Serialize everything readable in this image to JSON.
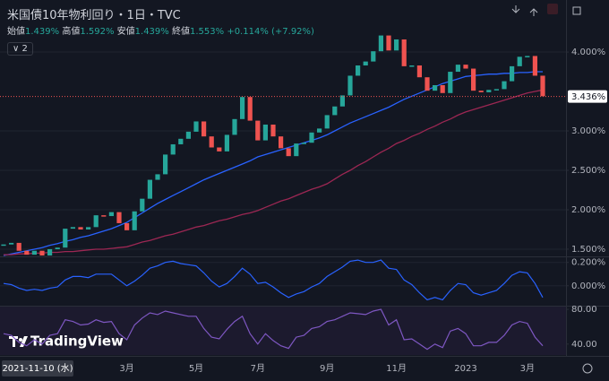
{
  "header": {
    "title": "米国債10年物利回り・1日・TVC",
    "ohlc": [
      {
        "label": "始値",
        "value": "1.439%"
      },
      {
        "label": "高値",
        "value": "1.592%"
      },
      {
        "label": "安値",
        "value": "1.439%"
      },
      {
        "label": "終値",
        "value": "1.553%"
      }
    ],
    "change": "+0.114% (+7.92%)",
    "indicator_count": "2"
  },
  "logo": "TradingView",
  "cursor_date": "2021-11-10 (水)",
  "chart_data": [
    {
      "type": "candle",
      "categories": [
        null,
        null,
        null,
        null,
        null,
        null,
        null,
        null,
        null,
        null,
        null,
        null,
        null,
        null,
        null,
        null,
        "3月",
        null,
        null,
        null,
        null,
        null,
        null,
        null,
        null,
        "5月",
        null,
        null,
        null,
        null,
        null,
        null,
        null,
        "7月",
        null,
        null,
        null,
        null,
        null,
        null,
        null,
        null,
        "9月",
        null,
        null,
        null,
        null,
        null,
        null,
        null,
        null,
        "11月",
        null,
        null,
        null,
        null,
        null,
        null,
        null,
        null,
        "2023",
        null,
        null,
        null,
        null,
        null,
        null,
        null,
        "3月",
        null,
        null
      ],
      "values": [
        1.56,
        1.58,
        1.48,
        1.43,
        1.48,
        1.42,
        1.5,
        1.52,
        1.76,
        1.78,
        1.75,
        1.78,
        1.93,
        1.92,
        1.97,
        1.83,
        1.74,
        1.98,
        2.14,
        2.38,
        2.45,
        2.7,
        2.83,
        2.9,
        2.99,
        3.12,
        2.93,
        2.79,
        2.74,
        2.95,
        3.15,
        3.43,
        3.13,
        2.88,
        3.08,
        2.93,
        2.78,
        2.68,
        2.84,
        2.85,
        2.98,
        3.03,
        3.2,
        3.31,
        3.45,
        3.7,
        3.83,
        3.88,
        4.01,
        4.21,
        4.02,
        4.16,
        3.82,
        3.83,
        3.68,
        3.51,
        3.58,
        3.48,
        3.75,
        3.84,
        3.79,
        3.51,
        3.49,
        3.52,
        3.53,
        3.63,
        3.82,
        3.94,
        3.95,
        3.7,
        3.44
      ],
      "up_color": "#26a69a",
      "down_color": "#ef5350",
      "overlays": [
        {
          "color": "#2962ff",
          "values": [
            1.42,
            1.44,
            1.46,
            1.48,
            1.5,
            1.52,
            1.55,
            1.57,
            1.6,
            1.62,
            1.65,
            1.67,
            1.7,
            1.73,
            1.76,
            1.8,
            1.84,
            1.9,
            1.96,
            2.02,
            2.08,
            2.13,
            2.18,
            2.23,
            2.28,
            2.33,
            2.38,
            2.42,
            2.46,
            2.5,
            2.54,
            2.58,
            2.62,
            2.67,
            2.7,
            2.73,
            2.76,
            2.79,
            2.82,
            2.85,
            2.88,
            2.91,
            2.95,
            3.0,
            3.05,
            3.1,
            3.14,
            3.18,
            3.22,
            3.26,
            3.3,
            3.35,
            3.4,
            3.44,
            3.48,
            3.52,
            3.56,
            3.6,
            3.63,
            3.66,
            3.69,
            3.7,
            3.71,
            3.72,
            3.72,
            3.73,
            3.73,
            3.74,
            3.74,
            3.75,
            3.75
          ]
        },
        {
          "color": "#9c2753",
          "values": [
            1.43,
            1.43,
            1.44,
            1.44,
            1.45,
            1.45,
            1.46,
            1.46,
            1.47,
            1.47,
            1.48,
            1.49,
            1.5,
            1.5,
            1.51,
            1.52,
            1.53,
            1.56,
            1.59,
            1.61,
            1.64,
            1.67,
            1.69,
            1.72,
            1.75,
            1.78,
            1.8,
            1.83,
            1.86,
            1.88,
            1.91,
            1.94,
            1.96,
            1.99,
            2.03,
            2.07,
            2.11,
            2.14,
            2.18,
            2.22,
            2.26,
            2.29,
            2.33,
            2.39,
            2.45,
            2.5,
            2.56,
            2.61,
            2.67,
            2.73,
            2.78,
            2.84,
            2.88,
            2.93,
            2.97,
            3.02,
            3.06,
            3.11,
            3.15,
            3.2,
            3.24,
            3.27,
            3.3,
            3.33,
            3.36,
            3.39,
            3.42,
            3.45,
            3.48,
            3.5,
            3.52
          ]
        }
      ],
      "ylim": [
        1.42,
        4.66
      ],
      "yticks": [
        {
          "value": 1.5,
          "label": "1.500%"
        },
        {
          "value": 2,
          "label": "2.000%"
        },
        {
          "value": 2.5,
          "label": "2.500%"
        },
        {
          "value": 3,
          "label": "3.000%"
        },
        {
          "value": 4,
          "label": "4.000%"
        }
      ],
      "last_price": {
        "value": 3.436,
        "label": "3.436%"
      },
      "grid": true
    },
    {
      "type": "line",
      "series": [
        {
          "color": "#2962ff",
          "values": [
            0.02,
            0.01,
            -0.02,
            -0.04,
            -0.03,
            -0.04,
            -0.02,
            -0.01,
            0.05,
            0.08,
            0.08,
            0.07,
            0.1,
            0.1,
            0.1,
            0.05,
            0.0,
            0.04,
            0.09,
            0.15,
            0.17,
            0.2,
            0.21,
            0.19,
            0.18,
            0.17,
            0.11,
            0.04,
            -0.01,
            0.02,
            0.08,
            0.15,
            0.1,
            0.02,
            0.03,
            -0.01,
            -0.06,
            -0.1,
            -0.07,
            -0.05,
            -0.01,
            0.02,
            0.08,
            0.12,
            0.16,
            0.21,
            0.22,
            0.2,
            0.2,
            0.22,
            0.15,
            0.14,
            0.05,
            0.01,
            -0.06,
            -0.12,
            -0.1,
            -0.12,
            -0.04,
            0.02,
            0.01,
            -0.06,
            -0.08,
            -0.06,
            -0.04,
            0.02,
            0.09,
            0.12,
            0.11,
            0.02,
            -0.1
          ]
        }
      ],
      "ylim": [
        -0.163,
        0.244
      ],
      "yticks": [
        {
          "value": 0,
          "label": "0.000%"
        },
        {
          "value": 0.2,
          "label": "0.200%"
        }
      ],
      "grid": true
    },
    {
      "type": "line",
      "series": [
        {
          "color": "#7e57c2",
          "values": [
            52,
            50,
            42,
            38,
            45,
            40,
            50,
            52,
            68,
            66,
            62,
            63,
            68,
            65,
            66,
            52,
            45,
            62,
            70,
            76,
            74,
            78,
            76,
            74,
            72,
            72,
            58,
            48,
            46,
            57,
            66,
            72,
            52,
            40,
            52,
            44,
            38,
            35,
            48,
            50,
            58,
            60,
            66,
            68,
            72,
            76,
            75,
            74,
            78,
            80,
            62,
            68,
            45,
            46,
            40,
            34,
            40,
            36,
            55,
            58,
            52,
            38,
            38,
            42,
            42,
            50,
            62,
            66,
            64,
            48,
            38
          ]
        }
      ],
      "ylim": [
        27.4,
        83.2
      ],
      "yticks": [
        {
          "value": 40,
          "label": "40.00"
        },
        {
          "value": 80,
          "label": "80.00"
        }
      ],
      "grid": false
    }
  ]
}
